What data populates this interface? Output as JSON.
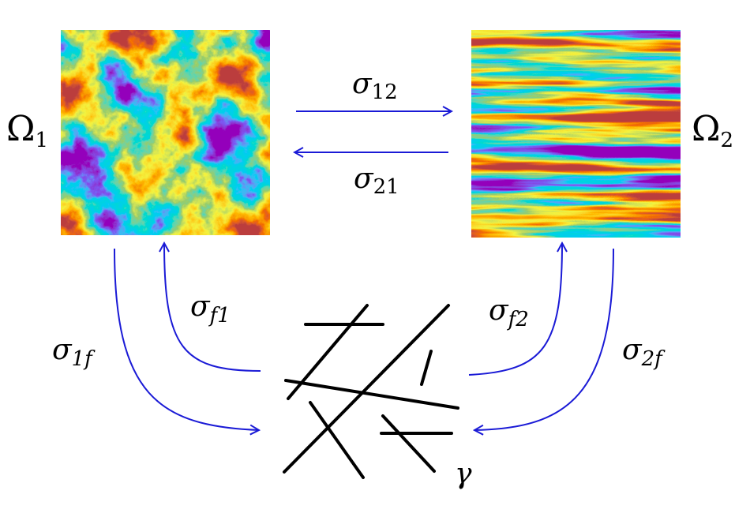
{
  "labels": {
    "omega1": {
      "symbol": "Ω",
      "subscript": "1"
    },
    "omega2": {
      "symbol": "Ω",
      "subscript": "2"
    },
    "sigma12": {
      "symbol": "σ",
      "subscript": "12"
    },
    "sigma21": {
      "symbol": "σ",
      "subscript": "21"
    },
    "sigmaf1": {
      "symbol": "σ",
      "subscript": "f1"
    },
    "sigma1f": {
      "symbol": "σ",
      "subscript": "1f"
    },
    "sigmaf2": {
      "symbol": "σ",
      "subscript": "f2"
    },
    "sigma2f": {
      "symbol": "σ",
      "subscript": "2f"
    },
    "gamma": "γ"
  }
}
